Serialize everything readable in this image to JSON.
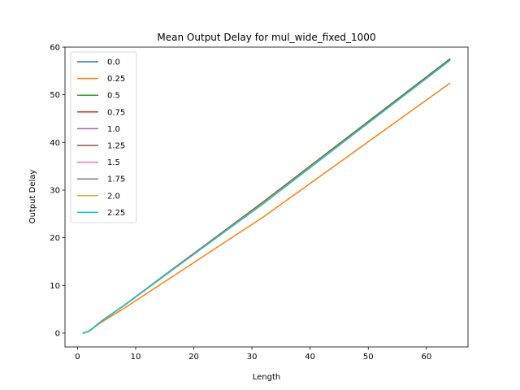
{
  "chart_data": {
    "type": "line",
    "title": "Mean Output Delay for mul_wide_fixed_1000",
    "xlabel": "Length",
    "ylabel": "Output Delay",
    "xlim": [
      -2.15,
      67.15
    ],
    "ylim": [
      -2.9,
      60.0
    ],
    "xticks": [
      0,
      10,
      20,
      30,
      40,
      50,
      60
    ],
    "yticks": [
      0,
      10,
      20,
      30,
      40,
      50,
      60
    ],
    "grid": false,
    "legend_position": "upper left",
    "x": [
      1,
      2,
      4,
      8,
      16,
      32,
      64
    ],
    "series": [
      {
        "name": "0.0",
        "color": "#1f77b4",
        "values": [
          0,
          0.4,
          2.4,
          5.8,
          13.0,
          27.3,
          57.3
        ]
      },
      {
        "name": "0.25",
        "color": "#ff7f0e",
        "values": [
          0,
          0.4,
          2.2,
          5.2,
          11.6,
          24.4,
          52.4
        ]
      },
      {
        "name": "0.5",
        "color": "#2ca02c",
        "values": [
          0,
          0.4,
          2.4,
          5.8,
          13.1,
          27.6,
          57.5
        ]
      },
      {
        "name": "0.75",
        "color": "#d62728",
        "values": [
          0,
          0.4,
          2.4,
          5.8,
          13.1,
          27.5,
          57.4
        ]
      },
      {
        "name": "1.0",
        "color": "#9467bd",
        "values": [
          0,
          0.4,
          2.4,
          5.8,
          13.0,
          27.4,
          57.3
        ]
      },
      {
        "name": "1.25",
        "color": "#8c564b",
        "values": [
          0,
          0.4,
          2.4,
          5.8,
          13.0,
          27.4,
          57.3
        ]
      },
      {
        "name": "1.5",
        "color": "#e377c2",
        "values": [
          0,
          0.4,
          2.4,
          5.8,
          13.0,
          27.3,
          57.2
        ]
      },
      {
        "name": "1.75",
        "color": "#7f7f7f",
        "values": [
          0,
          0.4,
          2.4,
          5.8,
          13.0,
          27.3,
          57.2
        ]
      },
      {
        "name": "2.0",
        "color": "#bcbd22",
        "values": [
          0,
          0.4,
          2.4,
          5.8,
          13.0,
          27.3,
          57.2
        ]
      },
      {
        "name": "2.25",
        "color": "#17becf",
        "values": [
          0,
          0.4,
          2.4,
          5.8,
          13.0,
          27.2,
          57.2
        ]
      }
    ]
  }
}
